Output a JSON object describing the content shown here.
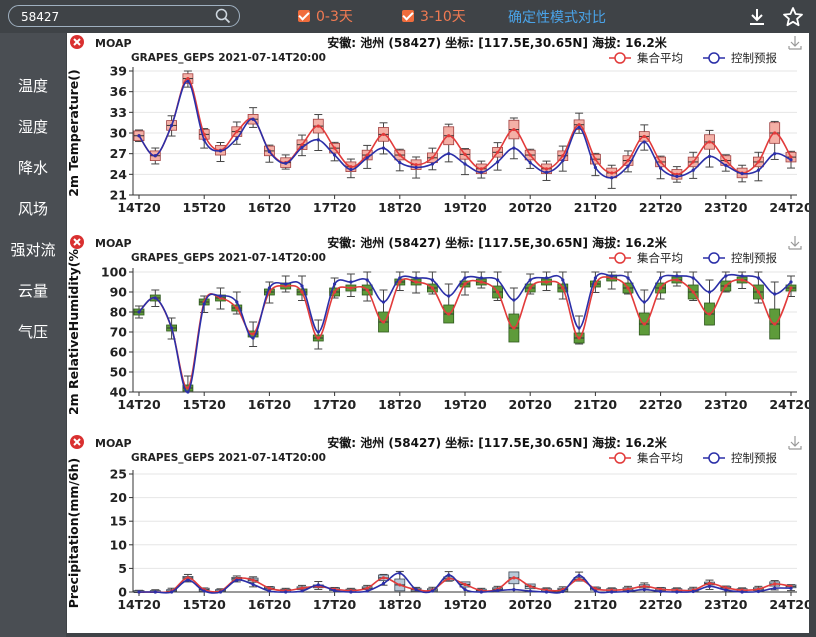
{
  "search": {
    "value": "58427"
  },
  "filters": [
    {
      "label": "0-3天",
      "checked": true
    },
    {
      "label": "3-10天",
      "checked": true
    }
  ],
  "compare_label": "确定性模式对比",
  "colors": {
    "ensemble": "#e23b3b",
    "control": "#2b2fa8",
    "box_temp": "#f4b0a6",
    "box_rh": "#5e9b3a",
    "box_pr": "#b8c9d8"
  },
  "sidebar": {
    "items": [
      {
        "label": "温度"
      },
      {
        "label": "湿度"
      },
      {
        "label": "降水"
      },
      {
        "label": "风场"
      },
      {
        "label": "强对流"
      },
      {
        "label": "云量"
      },
      {
        "label": "气压"
      }
    ]
  },
  "chart_data": [
    {
      "type": "line",
      "source": "MOAP",
      "title": "安徽: 池州 (58427) 坐标: [117.5E,30.65N] 海拔: 16.2米",
      "subtitle": "GRAPES_GEPS 2021-07-14T20:00",
      "ylabel": "2m Temperature()",
      "ylim": [
        21,
        39
      ],
      "yticks": [
        "21",
        "24",
        "27",
        "30",
        "33",
        "36",
        "39"
      ],
      "xticks": [
        "14T20",
        "15T20",
        "16T20",
        "17T20",
        "18T20",
        "19T20",
        "20T20",
        "21T20",
        "22T20",
        "23T20",
        "24T20"
      ],
      "series": [
        {
          "name": "集合平均",
          "values": [
            29.6,
            26.7,
            31.1,
            37.9,
            29.8,
            27.5,
            30.2,
            32.0,
            27.4,
            25.7,
            28.3,
            31.0,
            27.8,
            25.1,
            26.8,
            29.8,
            26.8,
            25.4,
            26.4,
            29.6,
            26.9,
            24.8,
            27.2,
            30.5,
            26.8,
            24.8,
            26.7,
            31.2,
            26.2,
            24.2,
            26.0,
            29.5,
            25.8,
            24.0,
            25.8,
            28.7,
            26.0,
            24.2,
            25.8,
            30.0,
            26.5
          ]
        },
        {
          "name": "控制预报",
          "values": [
            29.6,
            26.7,
            31.1,
            37.5,
            29.0,
            27.4,
            29.2,
            32.0,
            27.3,
            25.6,
            27.9,
            29.0,
            26.8,
            24.7,
            26.4,
            27.8,
            25.7,
            25.0,
            25.5,
            27.0,
            25.5,
            24.3,
            25.8,
            27.8,
            25.7,
            24.3,
            26.0,
            30.8,
            25.0,
            23.5,
            25.2,
            28.7,
            24.9,
            23.7,
            24.6,
            26.6,
            25.3,
            24.1,
            24.6,
            27.0,
            26.1
          ]
        }
      ]
    },
    {
      "type": "line",
      "source": "MOAP",
      "title": "安徽: 池州 (58427) 坐标: [117.5E,30.65N] 海拔: 16.2米",
      "subtitle": "GRAPES_GEPS 2021-07-14T20:00",
      "ylabel": "2m RelativeHumidity(%",
      "ylim": [
        40,
        100
      ],
      "yticks": [
        "40",
        "50",
        "60",
        "70",
        "80",
        "90",
        "100"
      ],
      "xticks": [
        "14T20",
        "15T20",
        "16T20",
        "17T20",
        "18T20",
        "19T20",
        "20T20",
        "21T20",
        "22T20",
        "23T20",
        "24T20"
      ],
      "series": [
        {
          "name": "集合平均",
          "values": [
            80,
            87,
            72,
            42,
            85,
            87,
            82,
            69,
            90,
            93,
            90,
            67,
            90,
            92,
            91,
            75,
            95,
            95,
            92,
            79,
            94,
            95,
            90,
            72,
            92,
            95,
            92,
            67,
            94,
            97,
            92,
            74,
            92,
            96,
            90,
            79,
            93,
            96,
            90,
            74,
            92
          ]
        },
        {
          "name": "控制预报",
          "values": [
            80,
            87,
            72,
            40,
            84,
            88,
            85,
            67,
            92,
            94,
            93,
            70,
            94,
            95,
            96,
            85,
            97,
            97,
            96,
            88,
            97,
            97,
            96,
            86,
            96,
            97,
            96,
            72,
            97,
            98,
            97,
            85,
            97,
            98,
            97,
            90,
            98,
            98,
            97,
            89,
            95
          ]
        }
      ]
    },
    {
      "type": "line",
      "source": "MOAP",
      "title": "安徽: 池州 (58427) 坐标: [117.5E,30.65N] 海拔: 16.2米",
      "subtitle": "GRAPES_GEPS 2021-07-14T20:00",
      "ylabel": "Precipitation(mm/6h)",
      "ylim": [
        0,
        25
      ],
      "yticks": [
        "0",
        "5",
        "10",
        "15",
        "20",
        "25"
      ],
      "xticks": [
        "14T20",
        "15T20",
        "16T20",
        "17T20",
        "18T20",
        "19T20",
        "20T20",
        "21T20",
        "22T20",
        "23T20",
        "24T20"
      ],
      "series": [
        {
          "name": "集合平均",
          "values": [
            0,
            0,
            0.2,
            3.0,
            0.5,
            0.2,
            2.8,
            2.5,
            0.8,
            0.3,
            0.8,
            1.2,
            0.6,
            0.3,
            0.8,
            3.0,
            1.5,
            0.5,
            0.4,
            2.8,
            1.6,
            0.3,
            0.6,
            3.0,
            1.2,
            0.4,
            0.5,
            2.7,
            0.7,
            0.4,
            0.6,
            1.2,
            0.6,
            0.4,
            0.4,
            1.8,
            0.9,
            0.4,
            0.6,
            1.7,
            1.2
          ]
        },
        {
          "name": "控制预报",
          "values": [
            0,
            0,
            0,
            2.5,
            0.2,
            0,
            2.5,
            1.6,
            0.2,
            0,
            0.2,
            1.5,
            0.3,
            0,
            0.2,
            1.8,
            4.0,
            0.5,
            0.2,
            3.6,
            0.5,
            0,
            0.3,
            0.5,
            0.2,
            0,
            0.1,
            3.5,
            0.2,
            0,
            0.1,
            0.5,
            0.1,
            0,
            0.1,
            1.2,
            0.4,
            0,
            0.1,
            0.8,
            0.8
          ]
        }
      ]
    }
  ]
}
